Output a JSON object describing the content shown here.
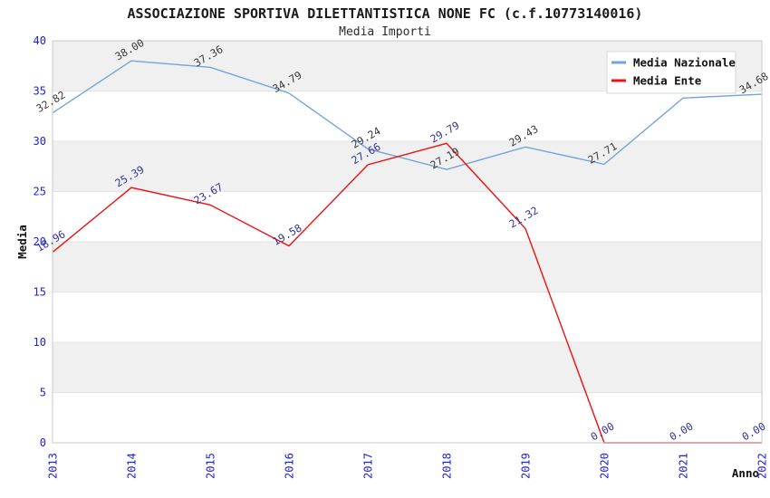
{
  "title": "ASSOCIAZIONE SPORTIVA DILETTANTISTICA NONE FC (c.f.10773140016)",
  "subtitle": "Media Importi",
  "colors": {
    "background": "#ffffff",
    "band": "#f0f0f1",
    "gridline": "#e4e4e7",
    "plot_border": "#c9c9c9",
    "tick_label": "#2020dd",
    "legend_border": "#d9d9d9",
    "legend_background": "#ffffff",
    "national_line": "#76a3d8",
    "entity_line": "#ee1111"
  },
  "chart_data": {
    "type": "line",
    "x": [
      "2013",
      "2014",
      "2015",
      "2016",
      "2017",
      "2018",
      "2019",
      "2020",
      "2021",
      "2022"
    ],
    "xlabel": "Anno",
    "ylabel": "Media",
    "ylim": [
      0,
      40
    ],
    "yticks": [
      0,
      5,
      10,
      15,
      20,
      25,
      30,
      35,
      40
    ],
    "grid": "horizontal-alternating-bands",
    "legend_position": "top-right",
    "series": [
      {
        "name": "Media Nazionale",
        "color": "#76a3d8",
        "label_color": "#3a3a3a",
        "values": [
          32.82,
          38.0,
          37.36,
          34.79,
          29.24,
          27.19,
          29.43,
          27.71,
          34.3,
          34.68
        ],
        "labels": [
          "32.82",
          "38.00",
          "37.36",
          "34.79",
          "29.24",
          "27.19",
          "29.43",
          "27.71",
          "",
          "34.68"
        ],
        "note_2021": "label hidden behind legend box; value estimated from line position"
      },
      {
        "name": "Media Ente",
        "color": "#ee1111",
        "label_color": "#333399",
        "values": [
          18.96,
          25.39,
          23.67,
          19.58,
          27.66,
          29.79,
          21.32,
          0.0,
          0.0,
          0.0
        ],
        "labels": [
          "18.96",
          "25.39",
          "23.67",
          "19.58",
          "27.66",
          "29.79",
          "21.32",
          "0.00",
          "0.00",
          "0.00"
        ]
      }
    ]
  }
}
